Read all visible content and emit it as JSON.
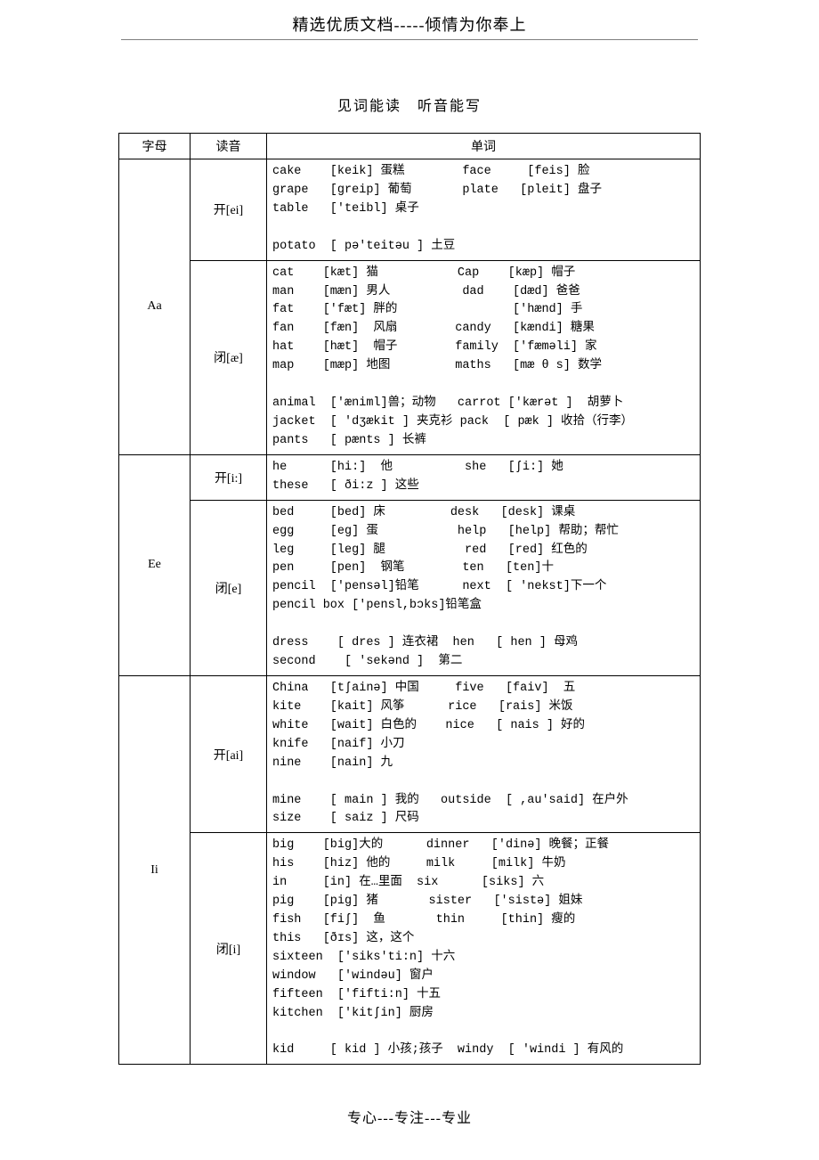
{
  "header": "精选优质文档-----倾情为你奉上",
  "title_left": "见词能读",
  "title_right": "听音能写",
  "footer": "专心---专注---专业",
  "columns": {
    "c1": "字母",
    "c2": "读音",
    "c3": "单词"
  },
  "rows": [
    {
      "letter": "Aa",
      "sounds": [
        {
          "label": "开[ei]",
          "words": "cake    [keik] 蛋糕        face     [feis] 脸\ngrape   [greip] 葡萄       plate   [pleit] 盘子\ntable   ['teibl] 桌子\n\npotato  [ pə'teitəu ] 土豆"
        },
        {
          "label": "闭[æ]",
          "words": "cat    [kæt] 猫           Cap    [kæp] 帽子\nman    [mæn] 男人          dad    [dæd] 爸爸\nfat    ['fæt] 胖的                ['hænd] 手\nfan    [fæn]  风扇        candy   [kændi] 糖果\nhat    [hæt]  帽子        family  ['fæməli] 家\nmap    [mæp] 地图         maths   [mæ θ s] 数学\n\nanimal  ['æniml]兽；动物   carrot ['kærət ]  胡萝卜\njacket  [ 'dʒækit ] 夹克衫 pack  [ pæk ] 收拾（行李）\npants   [ pænts ] 长裤"
        }
      ]
    },
    {
      "letter": "Ee",
      "sounds": [
        {
          "label": "开[i:]",
          "words": "he      [hi:]  他          she   [ʃi:] 她\nthese   [ ði:z ] 这些"
        },
        {
          "label": "闭[e]",
          "words": "bed     [bed] 床         desk   [desk] 课桌\negg     [eg] 蛋           help   [help] 帮助；帮忙\nleg     [leg] 腿           red   [red] 红色的\npen     [pen]  钢笔        ten   [ten]十\npencil  ['pensəl]铅笔      next  [ 'nekst]下一个\npencil box ['pensl,bɔks]铅笔盒\n\ndress    [ dres ] 连衣裙  hen   [ hen ] 母鸡\nsecond    [ 'sekənd ]  第二"
        }
      ]
    },
    {
      "letter": "Ii",
      "sounds": [
        {
          "label": "开[ai]",
          "words": "China   [tʃainə] 中国     five   [faiv]  五\nkite    [kait] 风筝      rice   [rais] 米饭\nwhite   [wait] 白色的    nice   [ nais ] 好的\nknife   [naif] 小刀\nnine    [nain] 九\n\nmine    [ main ] 我的   outside  [ ,au'said] 在户外\nsize    [ saiz ] 尺码"
        },
        {
          "label": "闭[i]",
          "words": "big    [big]大的      dinner   ['dinə] 晚餐；正餐\nhis    [hiz] 他的     milk     [milk] 牛奶\nin     [in] 在…里面  six      [siks] 六\npig    [pig] 猪       sister   ['sistə] 姐妹\nfish   [fiʃ]  鱼       thin     [thin] 瘦的\nthis   [ðɪs] 这，这个\nsixteen  ['siks'ti:n] 十六\nwindow   ['windəu] 窗户\nfifteen  ['fifti:n] 十五\nkitchen  ['kitʃin] 厨房\n\nkid     [ kid ] 小孩;孩子  windy  [ 'windi ] 有风的\n"
        }
      ]
    }
  ]
}
